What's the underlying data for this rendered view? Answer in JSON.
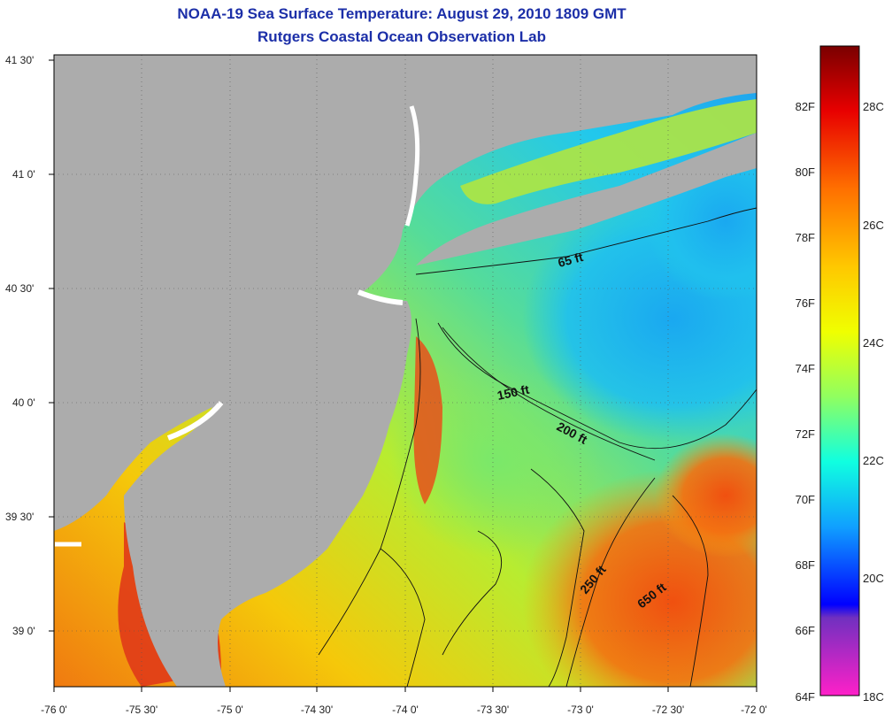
{
  "title": {
    "line1": "NOAA-19 Sea Surface Temperature:  August 29, 2010 1809 GMT",
    "line2": "Rutgers Coastal Ocean Observation Lab"
  },
  "axes": {
    "lat_ticks": [
      "41 30'",
      "41 0'",
      "40 30'",
      "40 0'",
      "39 30'",
      "39 0'"
    ],
    "lon_ticks": [
      "-76 0'",
      "-75 30'",
      "-75 0'",
      "-74 30'",
      "-74 0'",
      "-73 30'",
      "-73 0'",
      "-72 30'",
      "-72 0'"
    ]
  },
  "contours": [
    {
      "label": "65 ft"
    },
    {
      "label": "150 ft"
    },
    {
      "label": "200 ft"
    },
    {
      "label": "250 ft"
    },
    {
      "label": "650 ft"
    }
  ],
  "colorbar": {
    "f_labels": [
      "82F",
      "80F",
      "78F",
      "76F",
      "74F",
      "72F",
      "70F",
      "68F",
      "66F",
      "64F"
    ],
    "c_labels": [
      "28C",
      "26C",
      "24C",
      "22C",
      "20C",
      "18C"
    ]
  },
  "colors": {
    "land": "#acacac",
    "title": "#1c2fa8",
    "warm": "#e8401a",
    "cool": "#25c8e8"
  }
}
